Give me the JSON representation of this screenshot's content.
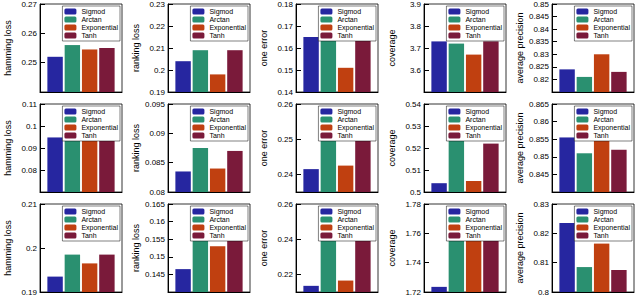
{
  "chart_data": [
    {
      "type": "bar",
      "y_label": "hamming loss",
      "tick_labels": "y",
      "legend": "upper right",
      "ylim": [
        0.24,
        0.27
      ],
      "yticks": [
        0.25,
        0.26,
        0.27
      ],
      "series": [
        {
          "name": "Sigmod",
          "color": "#2626a0",
          "values": [
            0.252
          ]
        },
        {
          "name": "Arctan",
          "color": "#2a9070",
          "values": [
            0.256
          ]
        },
        {
          "name": "Exponential",
          "color": "#c04010",
          "values": [
            0.2545
          ]
        },
        {
          "name": "Tanh",
          "color": "#7a1a3a",
          "values": [
            0.255
          ]
        }
      ]
    },
    {
      "type": "bar",
      "y_label": "ranking loss",
      "tick_labels": "y",
      "legend": "upper right",
      "ylim": [
        0.19,
        0.23
      ],
      "yticks": [
        0.19,
        0.2,
        0.21,
        0.22,
        0.23
      ],
      "series": [
        {
          "name": "Sigmod",
          "color": "#2626a0",
          "values": [
            0.204
          ]
        },
        {
          "name": "Arctan",
          "color": "#2a9070",
          "values": [
            0.209
          ]
        },
        {
          "name": "Exponential",
          "color": "#c04010",
          "values": [
            0.198
          ]
        },
        {
          "name": "Tanh",
          "color": "#7a1a3a",
          "values": [
            0.209
          ]
        }
      ]
    },
    {
      "type": "bar",
      "y_label": "one error",
      "tick_labels": "y",
      "legend": "upper right",
      "ylim": [
        0.14,
        0.18
      ],
      "yticks": [
        0.14,
        0.15,
        0.16,
        0.17,
        0.18
      ],
      "series": [
        {
          "name": "Sigmod",
          "color": "#2626a0",
          "values": [
            0.165
          ]
        },
        {
          "name": "Arctan",
          "color": "#2a9070",
          "values": [
            0.173
          ]
        },
        {
          "name": "Exponential",
          "color": "#c04010",
          "values": [
            0.151
          ]
        },
        {
          "name": "Tanh",
          "color": "#7a1a3a",
          "values": [
            0.171
          ]
        }
      ]
    },
    {
      "type": "bar",
      "y_label": "coverage",
      "tick_labels": "y",
      "legend": "upper right",
      "ylim": [
        3.5,
        3.9
      ],
      "yticks": [
        3.6,
        3.7,
        3.8,
        3.9
      ],
      "series": [
        {
          "name": "Sigmod",
          "color": "#2626a0",
          "values": [
            3.73
          ]
        },
        {
          "name": "Arctan",
          "color": "#2a9070",
          "values": [
            3.72
          ]
        },
        {
          "name": "Exponential",
          "color": "#c04010",
          "values": [
            3.67
          ]
        },
        {
          "name": "Tanh",
          "color": "#7a1a3a",
          "values": [
            3.73
          ]
        }
      ]
    },
    {
      "type": "bar",
      "y_label": "average precision",
      "tick_labels": "y",
      "legend": "upper right",
      "ylim": [
        0.815,
        0.85
      ],
      "yticks": [
        0.82,
        0.825,
        0.83,
        0.835,
        0.84,
        0.845,
        0.85
      ],
      "series": [
        {
          "name": "Sigmod",
          "color": "#2626a0",
          "values": [
            0.824
          ]
        },
        {
          "name": "Arctan",
          "color": "#2a9070",
          "values": [
            0.821
          ]
        },
        {
          "name": "Exponential",
          "color": "#c04010",
          "values": [
            0.83
          ]
        },
        {
          "name": "Tanh",
          "color": "#7a1a3a",
          "values": [
            0.823
          ]
        }
      ]
    },
    {
      "type": "bar",
      "y_label": "hamming loss",
      "tick_labels": "y",
      "legend": "upper right",
      "ylim": [
        0.07,
        0.11
      ],
      "yticks": [
        0.08,
        0.09,
        0.1,
        0.11
      ],
      "series": [
        {
          "name": "Sigmod",
          "color": "#2626a0",
          "values": [
            0.0948
          ]
        },
        {
          "name": "Arctan",
          "color": "#2a9070",
          "values": [
            0.0952
          ]
        },
        {
          "name": "Exponential",
          "color": "#c04010",
          "values": [
            0.0953
          ]
        },
        {
          "name": "Tanh",
          "color": "#7a1a3a",
          "values": [
            0.0951
          ]
        }
      ]
    },
    {
      "type": "bar",
      "y_label": "ranking loss",
      "tick_labels": "y",
      "legend": "upper right",
      "ylim": [
        0.08,
        0.095
      ],
      "yticks": [
        0.08,
        0.085,
        0.09,
        0.095
      ],
      "series": [
        {
          "name": "Sigmod",
          "color": "#2626a0",
          "values": [
            0.0835
          ]
        },
        {
          "name": "Arctan",
          "color": "#2a9070",
          "values": [
            0.0875
          ]
        },
        {
          "name": "Exponential",
          "color": "#c04010",
          "values": [
            0.084
          ]
        },
        {
          "name": "Tanh",
          "color": "#7a1a3a",
          "values": [
            0.087
          ]
        }
      ]
    },
    {
      "type": "bar",
      "y_label": "one error",
      "tick_labels": "y",
      "legend": "upper right",
      "ylim": [
        0.235,
        0.26
      ],
      "yticks": [
        0.24,
        0.25,
        0.26
      ],
      "series": [
        {
          "name": "Sigmod",
          "color": "#2626a0",
          "values": [
            0.2415
          ]
        },
        {
          "name": "Arctan",
          "color": "#2a9070",
          "values": [
            0.2535
          ]
        },
        {
          "name": "Exponential",
          "color": "#c04010",
          "values": [
            0.2425
          ]
        },
        {
          "name": "Tanh",
          "color": "#7a1a3a",
          "values": [
            0.2505
          ]
        }
      ]
    },
    {
      "type": "bar",
      "y_label": "coverage",
      "tick_labels": "y",
      "legend": "upper right",
      "ylim": [
        0.5,
        0.54
      ],
      "yticks": [
        0.5,
        0.51,
        0.52,
        0.53,
        0.54
      ],
      "series": [
        {
          "name": "Sigmod",
          "color": "#2626a0",
          "values": [
            0.504
          ]
        },
        {
          "name": "Arctan",
          "color": "#2a9070",
          "values": [
            0.524
          ]
        },
        {
          "name": "Exponential",
          "color": "#c04010",
          "values": [
            0.505
          ]
        },
        {
          "name": "Tanh",
          "color": "#7a1a3a",
          "values": [
            0.522
          ]
        }
      ]
    },
    {
      "type": "bar",
      "y_label": "average precision",
      "tick_labels": "y",
      "legend": "upper right",
      "ylim": [
        0.84,
        0.865
      ],
      "yticks": [
        0.845,
        0.85,
        0.855,
        0.86,
        0.865
      ],
      "series": [
        {
          "name": "Sigmod",
          "color": "#2626a0",
          "values": [
            0.8555
          ]
        },
        {
          "name": "Arctan",
          "color": "#2a9070",
          "values": [
            0.851
          ]
        },
        {
          "name": "Exponential",
          "color": "#c04010",
          "values": [
            0.855
          ]
        },
        {
          "name": "Tanh",
          "color": "#7a1a3a",
          "values": [
            0.852
          ]
        }
      ]
    },
    {
      "type": "bar",
      "y_label": "hamming loss",
      "tick_labels": "y",
      "legend": "upper right",
      "ylim": [
        0.19,
        0.21
      ],
      "yticks": [
        0.19,
        0.2,
        0.21
      ],
      "series": [
        {
          "name": "Sigmod",
          "color": "#2626a0",
          "values": [
            0.1935
          ]
        },
        {
          "name": "Arctan",
          "color": "#2a9070",
          "values": [
            0.1985
          ]
        },
        {
          "name": "Exponential",
          "color": "#c04010",
          "values": [
            0.1965
          ]
        },
        {
          "name": "Tanh",
          "color": "#7a1a3a",
          "values": [
            0.1985
          ]
        }
      ]
    },
    {
      "type": "bar",
      "y_label": "ranking loss",
      "tick_labels": "y",
      "legend": "upper right",
      "ylim": [
        0.14,
        0.165
      ],
      "yticks": [
        0.145,
        0.15,
        0.155,
        0.16,
        0.165
      ],
      "series": [
        {
          "name": "Sigmod",
          "color": "#2626a0",
          "values": [
            0.1465
          ]
        },
        {
          "name": "Arctan",
          "color": "#2a9070",
          "values": [
            0.1595
          ]
        },
        {
          "name": "Exponential",
          "color": "#c04010",
          "values": [
            0.153
          ]
        },
        {
          "name": "Tanh",
          "color": "#7a1a3a",
          "values": [
            0.1585
          ]
        }
      ]
    },
    {
      "type": "bar",
      "y_label": "one error",
      "tick_labels": "y",
      "legend": "upper right",
      "ylim": [
        0.21,
        0.26
      ],
      "yticks": [
        0.22,
        0.24,
        0.26
      ],
      "series": [
        {
          "name": "Sigmod",
          "color": "#2626a0",
          "values": [
            0.2135
          ]
        },
        {
          "name": "Arctan",
          "color": "#2a9070",
          "values": [
            0.2425
          ]
        },
        {
          "name": "Exponential",
          "color": "#c04010",
          "values": [
            0.2165
          ]
        },
        {
          "name": "Tanh",
          "color": "#7a1a3a",
          "values": [
            0.2435
          ]
        }
      ]
    },
    {
      "type": "bar",
      "y_label": "coverage",
      "tick_labels": "y",
      "legend": "upper right",
      "ylim": [
        1.72,
        1.78
      ],
      "yticks": [
        1.72,
        1.74,
        1.76,
        1.78
      ],
      "series": [
        {
          "name": "Sigmod",
          "color": "#2626a0",
          "values": [
            1.7235
          ]
        },
        {
          "name": "Arctan",
          "color": "#2a9070",
          "values": [
            1.7675
          ]
        },
        {
          "name": "Exponential",
          "color": "#c04010",
          "values": [
            1.7555
          ]
        },
        {
          "name": "Tanh",
          "color": "#7a1a3a",
          "values": [
            1.7615
          ]
        }
      ]
    },
    {
      "type": "bar",
      "y_label": "average precision",
      "tick_labels": "y",
      "legend": "upper right",
      "ylim": [
        0.8,
        0.83
      ],
      "yticks": [
        0.8,
        0.81,
        0.82,
        0.83
      ],
      "series": [
        {
          "name": "Sigmod",
          "color": "#2626a0",
          "values": [
            0.8235
          ]
        },
        {
          "name": "Arctan",
          "color": "#2a9070",
          "values": [
            0.8085
          ]
        },
        {
          "name": "Exponential",
          "color": "#c04010",
          "values": [
            0.8165
          ]
        },
        {
          "name": "Tanh",
          "color": "#7a1a3a",
          "values": [
            0.8075
          ]
        }
      ]
    }
  ]
}
